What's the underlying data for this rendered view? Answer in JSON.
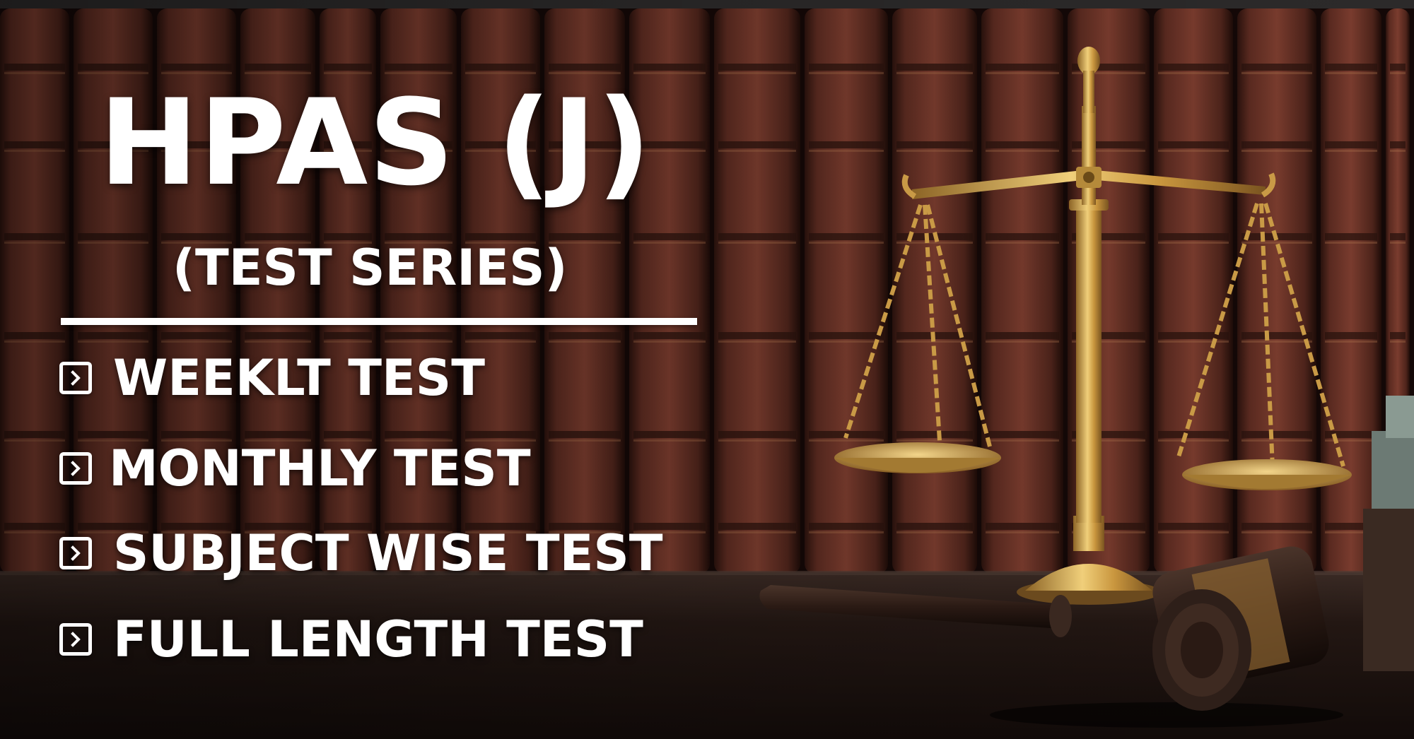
{
  "banner": {
    "title": "HPAS (J)",
    "subtitle": "(TEST SERIES)",
    "features": [
      {
        "label": "WEEKLT TEST",
        "icon": "chevron-right-box-icon"
      },
      {
        "label": "MONTHLY TEST",
        "icon": "chevron-right-box-icon"
      },
      {
        "label": "SUBJECT WISE TEST",
        "icon": "chevron-right-box-icon"
      },
      {
        "label": "FULL LENGTH TEST",
        "icon": "chevron-right-box-icon"
      }
    ]
  },
  "colors": {
    "text": "#ffffff",
    "book_leather": "#5e2c22",
    "book_gold": "#b07a3c",
    "scale_brass": "#d8aa4e",
    "gavel_wood": "#2a1a14",
    "table": "#1c120e"
  },
  "background": {
    "description_icons": [
      "books-shelf-image",
      "scales-of-justice-image",
      "gavel-image"
    ]
  }
}
